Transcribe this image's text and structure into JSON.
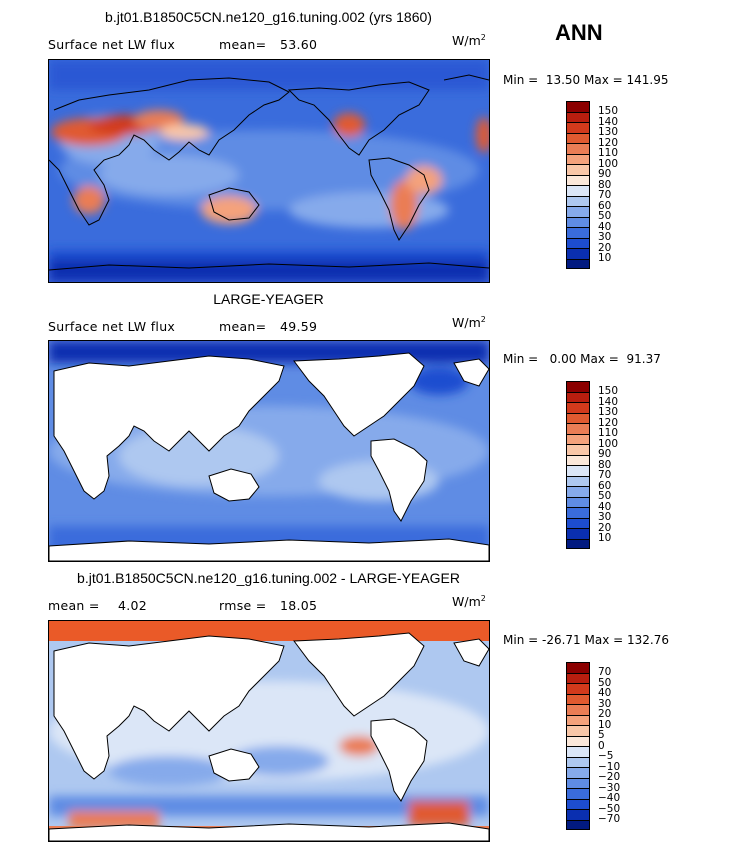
{
  "season": "ANN",
  "panels": [
    {
      "title": "b.jt01.B1850C5CN.ne120_g16.tuning.002 (yrs 1860)",
      "variable": "Surface net LW flux",
      "stat1_label": "mean=",
      "stat1_value": "53.60",
      "stat2_label": "",
      "stat2_value": "",
      "units": "W/m",
      "units_exp": "2",
      "min_label": "Min =",
      "min_value": "13.50",
      "max_label": "Max =",
      "max_value": "141.95",
      "colorbar": {
        "labels": [
          "150",
          "140",
          "130",
          "120",
          "110",
          "100",
          "90",
          "80",
          "70",
          "60",
          "50",
          "40",
          "30",
          "20",
          "10"
        ],
        "colors": [
          "#8b0000",
          "#b81e0f",
          "#d23a1c",
          "#e05a30",
          "#ea7d55",
          "#f4a27c",
          "#f9c7a8",
          "#fbe8da",
          "#dbe6f7",
          "#aec8f0",
          "#86aaeb",
          "#5f8ce4",
          "#3a6cdc",
          "#1d4dd0",
          "#0a2fb0",
          "#021a80"
        ]
      }
    },
    {
      "title": "LARGE-YEAGER",
      "variable": "Surface net LW flux",
      "stat1_label": "mean=",
      "stat1_value": "49.59",
      "stat2_label": "",
      "stat2_value": "",
      "units": "W/m",
      "units_exp": "2",
      "min_label": "Min =",
      "min_value": "0.00",
      "max_label": "Max =",
      "max_value": "91.37",
      "colorbar": {
        "labels": [
          "150",
          "140",
          "130",
          "120",
          "110",
          "100",
          "90",
          "80",
          "70",
          "60",
          "50",
          "40",
          "30",
          "20",
          "10"
        ],
        "colors": [
          "#8b0000",
          "#b81e0f",
          "#d23a1c",
          "#e05a30",
          "#ea7d55",
          "#f4a27c",
          "#f9c7a8",
          "#fbe8da",
          "#dbe6f7",
          "#aec8f0",
          "#86aaeb",
          "#5f8ce4",
          "#3a6cdc",
          "#1d4dd0",
          "#0a2fb0",
          "#021a80"
        ]
      }
    },
    {
      "title": "b.jt01.B1850C5CN.ne120_g16.tuning.002 - LARGE-YEAGER",
      "variable": "",
      "stat1_label": "mean =",
      "stat1_value": "4.02",
      "stat2_label": "rmse =",
      "stat2_value": "18.05",
      "units": "W/m",
      "units_exp": "2",
      "min_label": "Min =",
      "min_value": "-26.71",
      "max_label": "Max =",
      "max_value": "132.76",
      "colorbar": {
        "labels": [
          "70",
          "50",
          "40",
          "30",
          "20",
          "10",
          "5",
          "0",
          "−5",
          "−10",
          "−20",
          "−30",
          "−40",
          "−50",
          "−70"
        ],
        "colors": [
          "#8b0000",
          "#b81e0f",
          "#d23a1c",
          "#e05a30",
          "#ea7d55",
          "#f4a27c",
          "#f9c7a8",
          "#fbe8da",
          "#dbe6f7",
          "#aec8f0",
          "#86aaeb",
          "#5f8ce4",
          "#3a6cdc",
          "#1d4dd0",
          "#0a2fb0",
          "#021a80"
        ]
      }
    }
  ]
}
